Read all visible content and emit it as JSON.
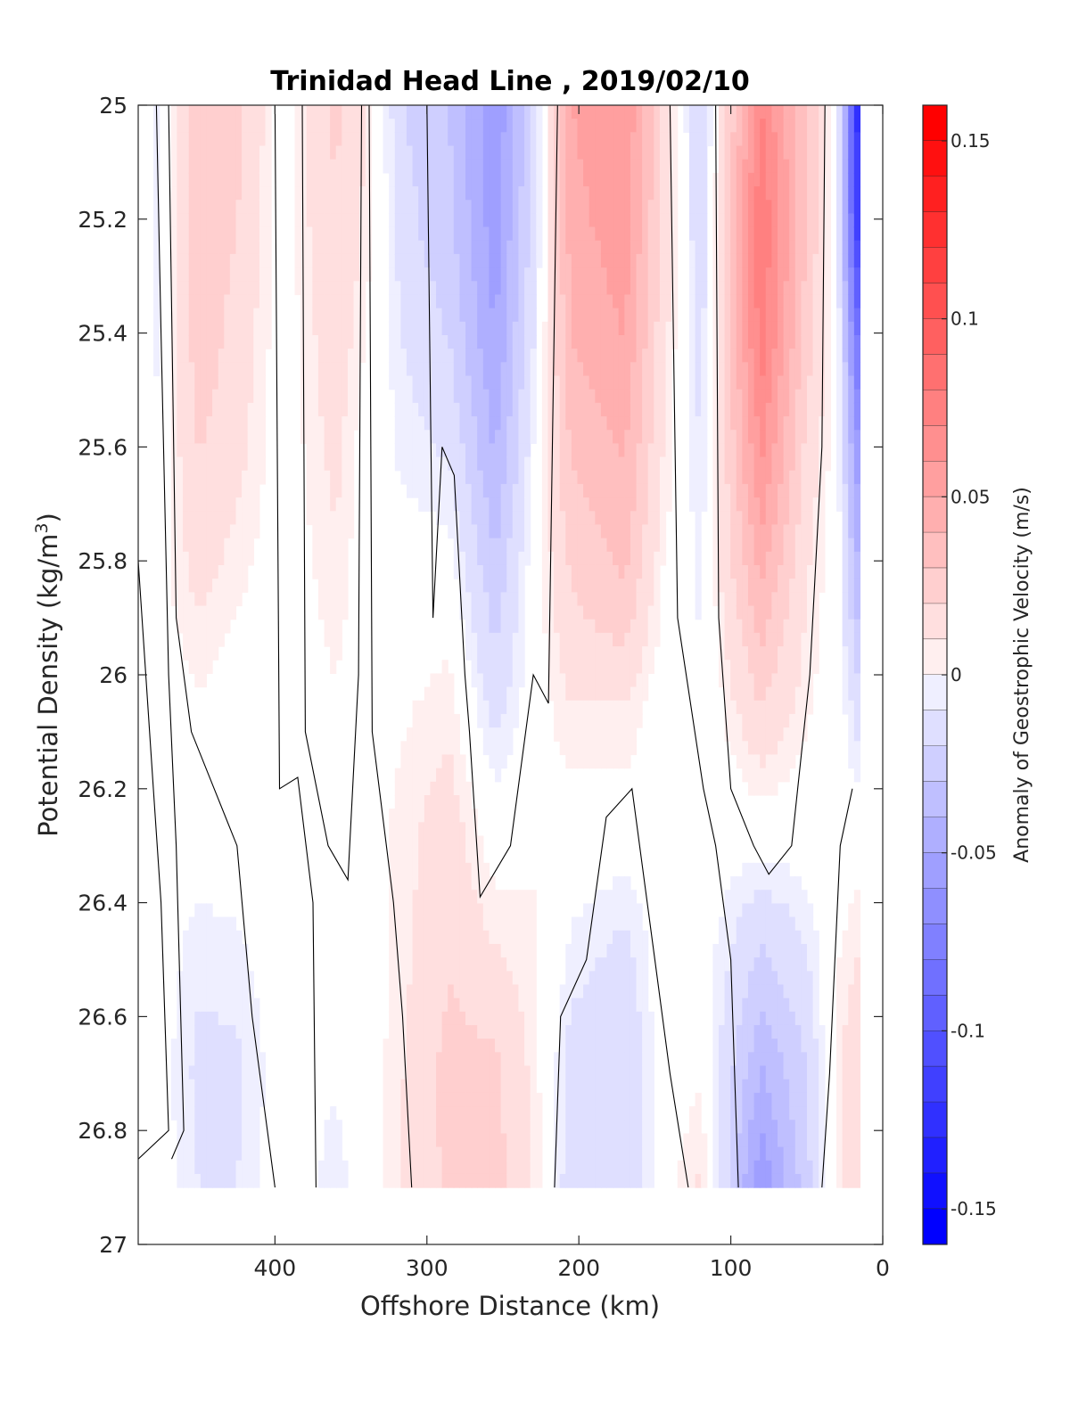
{
  "chart_data": {
    "type": "heatmap",
    "title": "Trinidad Head Line , 2019/02/10",
    "xlabel": "Offshore Distance (km)",
    "ylabel": "Potential Density (kg/m",
    "ylabel_sup": "3",
    "ylabel_end": ")",
    "colorbar_label": "Anomaly of Geostrophic Velocity (m/s)",
    "x_reversed": true,
    "xlim": [
      0,
      490
    ],
    "ylim": [
      25,
      27
    ],
    "y_reversed": true,
    "clim": [
      -0.16,
      0.16
    ],
    "x_ticks": [
      400,
      300,
      200,
      100,
      0
    ],
    "x_tick_labels": [
      "400",
      "300",
      "200",
      "100",
      "0"
    ],
    "y_ticks": [
      25,
      25.2,
      25.4,
      25.6,
      25.8,
      26,
      26.2,
      26.4,
      26.6,
      26.8,
      27
    ],
    "y_tick_labels": [
      "25",
      "25.2",
      "25.4",
      "25.6",
      "25.8",
      "26",
      "26.2",
      "26.4",
      "26.6",
      "26.8",
      "27"
    ],
    "cb_ticks": [
      0.15,
      0.1,
      0.05,
      0,
      -0.05,
      -0.1,
      -0.15
    ],
    "cb_tick_labels": [
      "0.15",
      "0.1",
      "0.05",
      "0",
      "-0.05",
      "-0.1",
      "-0.15"
    ],
    "colormap": {
      "negative": "#0000ff",
      "zero": "#ffffff",
      "positive": "#ff0000",
      "levels": 32
    },
    "contour_color": "#000000",
    "sigma_bottom": 26.9,
    "columns": [
      {
        "x": 480,
        "values": [
          -0.01,
          -0.01,
          -0.008,
          -0.004,
          0.0,
          0.0,
          0.0,
          0.0,
          0.0,
          0.0
        ]
      },
      {
        "x": 450,
        "values": [
          0.03,
          0.028,
          0.026,
          0.02,
          0.012,
          0.004,
          0.0,
          -0.008,
          -0.012,
          -0.01
        ]
      },
      {
        "x": 425,
        "values": [
          0.024,
          0.02,
          0.016,
          0.012,
          0.006,
          0.0,
          0.0,
          -0.006,
          -0.012,
          -0.01
        ]
      },
      {
        "x": 395,
        "values": [
          0.0,
          0.0,
          0.0,
          0.0,
          0.0,
          0.0,
          0.0,
          0.0,
          0.0,
          0.0
        ]
      },
      {
        "x": 360,
        "values": [
          0.022,
          0.02,
          0.016,
          0.012,
          0.008,
          0.004,
          0.0,
          0.0,
          -0.004,
          -0.008
        ]
      },
      {
        "x": 340,
        "values": [
          0.01,
          0.008,
          0.004,
          0.0,
          0.0,
          0.0,
          0.0,
          0.0,
          0.0,
          0.0
        ]
      },
      {
        "x": 315,
        "values": [
          -0.02,
          -0.016,
          -0.01,
          -0.006,
          0.0,
          0.004,
          0.008,
          0.008,
          0.01,
          0.012
        ]
      },
      {
        "x": 285,
        "values": [
          -0.03,
          -0.028,
          -0.02,
          -0.01,
          0.0,
          0.008,
          0.014,
          0.018,
          0.024,
          0.022
        ]
      },
      {
        "x": 255,
        "values": [
          -0.06,
          -0.056,
          -0.05,
          -0.04,
          -0.026,
          -0.014,
          0.0,
          0.01,
          0.022,
          0.024
        ]
      },
      {
        "x": 230,
        "values": [
          -0.02,
          -0.016,
          -0.01,
          -0.004,
          0.0,
          0.0,
          0.004,
          0.006,
          0.008,
          0.01
        ]
      },
      {
        "x": 205,
        "values": [
          0.05,
          0.046,
          0.04,
          0.03,
          0.02,
          0.01,
          0.0,
          -0.006,
          -0.014,
          -0.016
        ]
      },
      {
        "x": 170,
        "values": [
          0.06,
          0.056,
          0.05,
          0.04,
          0.03,
          0.01,
          0.0,
          -0.012,
          -0.02,
          -0.018
        ]
      },
      {
        "x": 145,
        "values": [
          0.02,
          0.018,
          0.014,
          0.01,
          0.004,
          0.0,
          0.0,
          0.0,
          0.0,
          0.0
        ]
      },
      {
        "x": 120,
        "values": [
          -0.02,
          -0.018,
          -0.014,
          -0.01,
          -0.006,
          -0.004,
          0.0,
          0.0,
          0.004,
          0.012
        ]
      },
      {
        "x": 80,
        "values": [
          0.07,
          0.08,
          0.075,
          0.06,
          0.04,
          0.02,
          0.0,
          -0.02,
          -0.04,
          -0.06
        ]
      },
      {
        "x": 50,
        "values": [
          0.03,
          0.03,
          0.024,
          0.016,
          0.01,
          0.006,
          0.0,
          -0.01,
          -0.02,
          -0.024
        ]
      },
      {
        "x": 30,
        "values": [
          0.0,
          0.0,
          0.0,
          0.0,
          0.0,
          0.0,
          0.0,
          0.004,
          0.008,
          0.008
        ]
      },
      {
        "x": 15,
        "values": [
          -0.14,
          -0.13,
          -0.09,
          -0.06,
          -0.04,
          -0.016,
          0.0,
          0.01,
          0.02,
          0.02
        ]
      }
    ],
    "contours": [
      [
        [
          490,
          25.8
        ],
        [
          480,
          26.2
        ],
        [
          475,
          26.4
        ],
        [
          470,
          26.8
        ],
        [
          490,
          26.85
        ]
      ],
      [
        [
          478,
          25.0
        ],
        [
          475,
          25.4
        ],
        [
          470,
          26.0
        ],
        [
          465,
          26.3
        ],
        [
          462,
          26.6
        ],
        [
          460,
          26.8
        ],
        [
          468,
          26.85
        ]
      ],
      [
        [
          470,
          25.0
        ],
        [
          465,
          25.9
        ],
        [
          455,
          26.1
        ],
        [
          440,
          26.2
        ],
        [
          425,
          26.3
        ],
        [
          415,
          26.6
        ],
        [
          410,
          26.7
        ],
        [
          400,
          26.9
        ]
      ],
      [
        [
          400,
          25.0
        ],
        [
          397,
          26.2
        ],
        [
          385,
          26.18
        ],
        [
          375,
          26.4
        ],
        [
          373,
          26.9
        ]
      ],
      [
        [
          382,
          25.0
        ],
        [
          380,
          26.1
        ],
        [
          365,
          26.3
        ],
        [
          352,
          26.36
        ],
        [
          345,
          26.0
        ],
        [
          343,
          25.0
        ]
      ],
      [
        [
          338,
          25.0
        ],
        [
          336,
          26.1
        ],
        [
          322,
          26.4
        ],
        [
          316,
          26.6
        ],
        [
          310,
          26.9
        ]
      ],
      [
        [
          300,
          25.0
        ],
        [
          296,
          25.9
        ],
        [
          290,
          25.6
        ],
        [
          282,
          25.65
        ],
        [
          275,
          26.0
        ],
        [
          272,
          26.1
        ],
        [
          265,
          26.39
        ],
        [
          245,
          26.3
        ],
        [
          230,
          26.0
        ],
        [
          220,
          26.05
        ],
        [
          214,
          25.0
        ]
      ],
      [
        [
          216,
          26.9
        ],
        [
          212,
          26.6
        ],
        [
          195,
          26.5
        ],
        [
          182,
          26.25
        ],
        [
          165,
          26.2
        ],
        [
          150,
          26.5
        ],
        [
          140,
          26.7
        ],
        [
          128,
          26.9
        ]
      ],
      [
        [
          140,
          25.0
        ],
        [
          135,
          25.9
        ],
        [
          118,
          26.2
        ],
        [
          110,
          26.3
        ],
        [
          100,
          26.5
        ],
        [
          95,
          26.9
        ]
      ],
      [
        [
          110,
          25.0
        ],
        [
          108,
          25.9
        ],
        [
          100,
          26.2
        ],
        [
          85,
          26.3
        ],
        [
          75,
          26.35
        ],
        [
          60,
          26.3
        ],
        [
          48,
          26.0
        ],
        [
          40,
          25.6
        ],
        [
          38,
          25.0
        ]
      ],
      [
        [
          40,
          26.9
        ],
        [
          35,
          26.7
        ],
        [
          28,
          26.3
        ],
        [
          20,
          26.2
        ]
      ]
    ]
  }
}
